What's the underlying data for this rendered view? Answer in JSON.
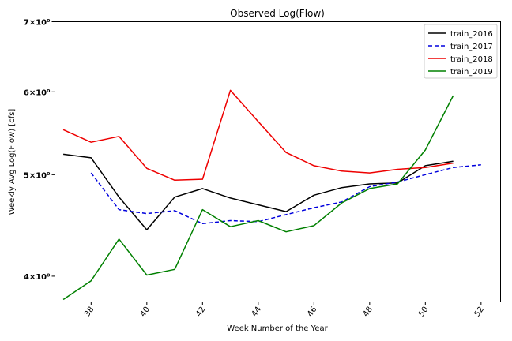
{
  "chart_data": {
    "type": "line",
    "title": "Observed Log(Flow)",
    "xlabel": "Week Number of the Year",
    "ylabel": "Weekly Avg Log(Flow) [cfs]",
    "xlim": [
      36.7,
      52.7
    ],
    "ylim": [
      3.78,
      7.0
    ],
    "yscale": "log",
    "xticks": [
      38,
      40,
      42,
      44,
      46,
      48,
      50,
      52
    ],
    "xtick_labels": [
      "38",
      "40",
      "42",
      "44",
      "46",
      "48",
      "50",
      "52"
    ],
    "yticks": [
      4,
      5,
      6,
      7
    ],
    "ytick_labels": [
      "4×10⁰",
      "5×10⁰",
      "6×10⁰",
      "7×10⁰"
    ],
    "grid": false,
    "legend_position": "top-right",
    "series": [
      {
        "name": "train_2016",
        "color": "#000000",
        "dash": "solid",
        "x": [
          37,
          38,
          39,
          40,
          41,
          42,
          43,
          44,
          45,
          46,
          47,
          48,
          49,
          50,
          51
        ],
        "y": [
          5.23,
          5.19,
          4.76,
          4.43,
          4.76,
          4.85,
          4.75,
          4.68,
          4.61,
          4.78,
          4.86,
          4.9,
          4.91,
          5.1,
          5.15
        ]
      },
      {
        "name": "train_2017",
        "color": "#0000dd",
        "dash": "dashed",
        "x": [
          38,
          39,
          40,
          41,
          42,
          43,
          44,
          45,
          46,
          47,
          48,
          49,
          50,
          51,
          52
        ],
        "y": [
          5.02,
          4.63,
          4.59,
          4.62,
          4.49,
          4.52,
          4.51,
          4.58,
          4.65,
          4.71,
          4.87,
          4.92,
          5.0,
          5.08,
          5.11
        ]
      },
      {
        "name": "train_2018",
        "color": "#ee0000",
        "dash": "solid",
        "x": [
          37,
          38,
          39,
          40,
          41,
          42,
          43,
          44,
          45,
          46,
          47,
          48,
          49,
          50,
          51
        ],
        "y": [
          5.52,
          5.37,
          5.44,
          5.07,
          4.94,
          4.95,
          6.02,
          5.62,
          5.25,
          5.1,
          5.04,
          5.02,
          5.06,
          5.08,
          5.13
        ]
      },
      {
        "name": "train_2019",
        "color": "#008000",
        "dash": "solid",
        "x": [
          37,
          38,
          39,
          40,
          41,
          42,
          43,
          44,
          45,
          46,
          47,
          48,
          49,
          50,
          51
        ],
        "y": [
          3.8,
          3.96,
          4.34,
          4.01,
          4.06,
          4.63,
          4.46,
          4.52,
          4.41,
          4.47,
          4.7,
          4.85,
          4.9,
          5.28,
          5.95
        ]
      }
    ]
  }
}
